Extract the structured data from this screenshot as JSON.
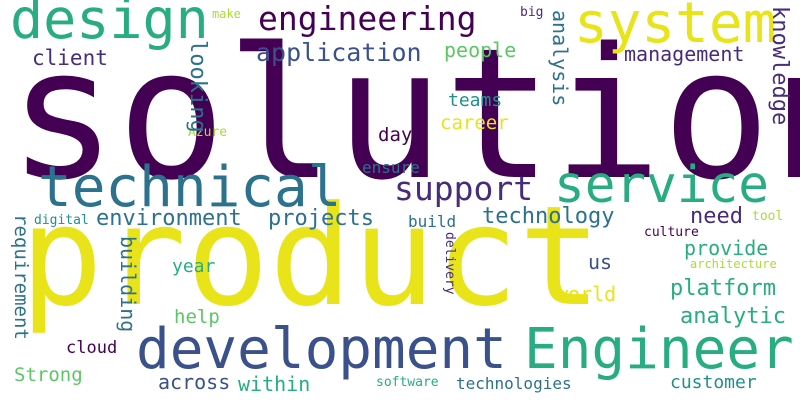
{
  "words": {
    "solution": "solution",
    "product": "product",
    "development": "development",
    "engineer": "Engineer",
    "technical": "technical",
    "service": "service",
    "design": "design",
    "system": "system",
    "engineering": "engineering",
    "support": "support",
    "application": "application",
    "environment": "environment",
    "projects": "projects",
    "technology": "technology",
    "management": "management",
    "client": "client",
    "people": "people",
    "teams": "teams",
    "career": "career",
    "looking": "looking",
    "analysis": "analysis",
    "knowledge": "knowledge",
    "day": "day",
    "ensure": "ensure",
    "need": "need",
    "provide": "provide",
    "building": "building",
    "year": "year",
    "us": "us",
    "world": "world",
    "platform": "platform",
    "help": "help",
    "analytic": "analytic",
    "requirement": "requirement",
    "cloud": "cloud",
    "strong": "Strong",
    "across": "across",
    "within": "within",
    "customer": "customer",
    "technologies": "technologies",
    "build": "build",
    "digital": "digital",
    "delivery": "delivery",
    "culture": "culture",
    "tool": "tool",
    "architecture": "architecture",
    "software": "software",
    "azure": "Azure",
    "make": "make",
    "big": "big"
  }
}
